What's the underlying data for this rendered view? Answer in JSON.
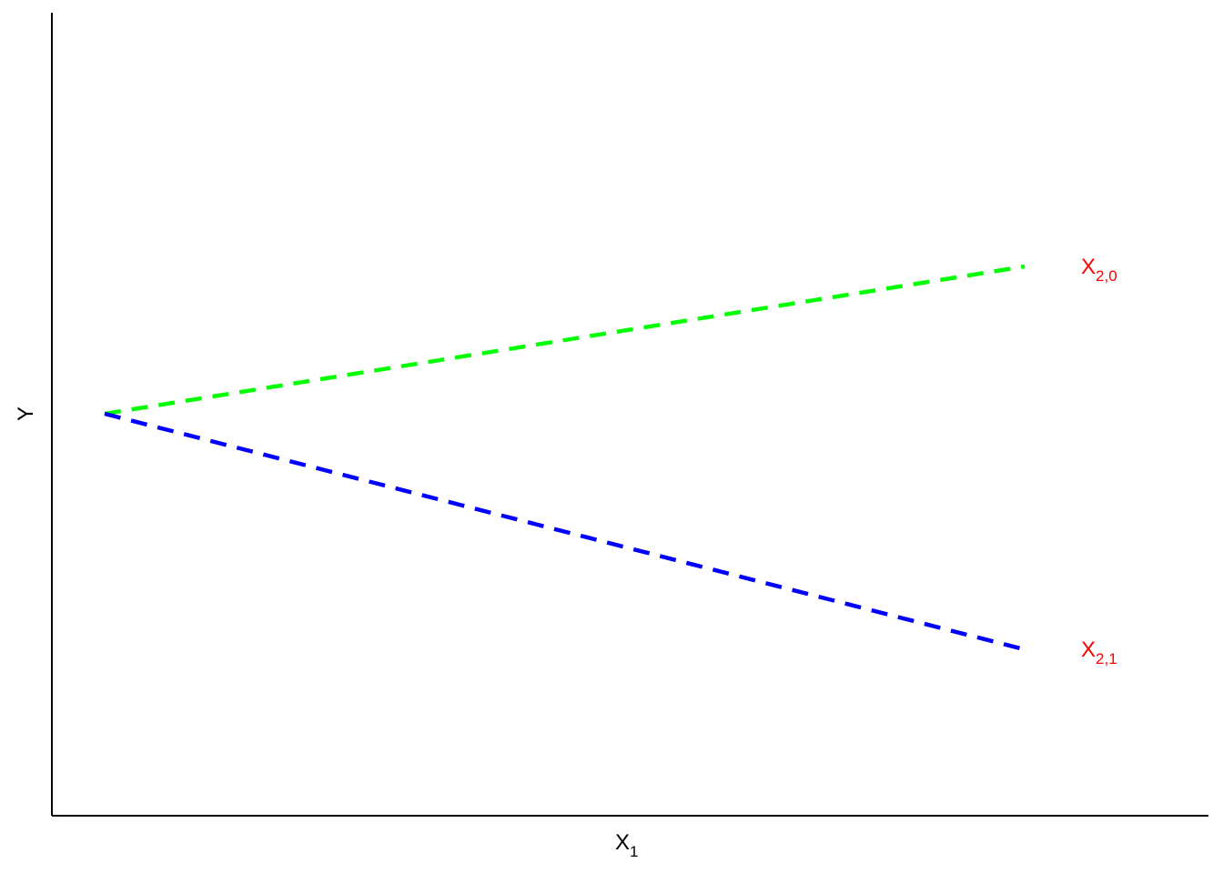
{
  "chart_data": {
    "type": "line",
    "title": "",
    "xlabel": "X",
    "xlabel_sub": "1",
    "ylabel": "Y",
    "xlim": [
      0,
      1.19
    ],
    "ylim": [
      -1.12,
      1
    ],
    "grid": false,
    "legend": "none",
    "series": [
      {
        "label": "X",
        "label_sub": "2,0",
        "color": "#00ff00",
        "linestyle": "dashed",
        "x": [
          0,
          1
        ],
        "y": [
          0,
          0.25
        ]
      },
      {
        "label": "X",
        "label_sub": "2,1",
        "color": "#0000ff",
        "linestyle": "dashed",
        "x": [
          0,
          1
        ],
        "y": [
          0,
          -0.4
        ]
      }
    ],
    "label_color": "#ff0000"
  }
}
